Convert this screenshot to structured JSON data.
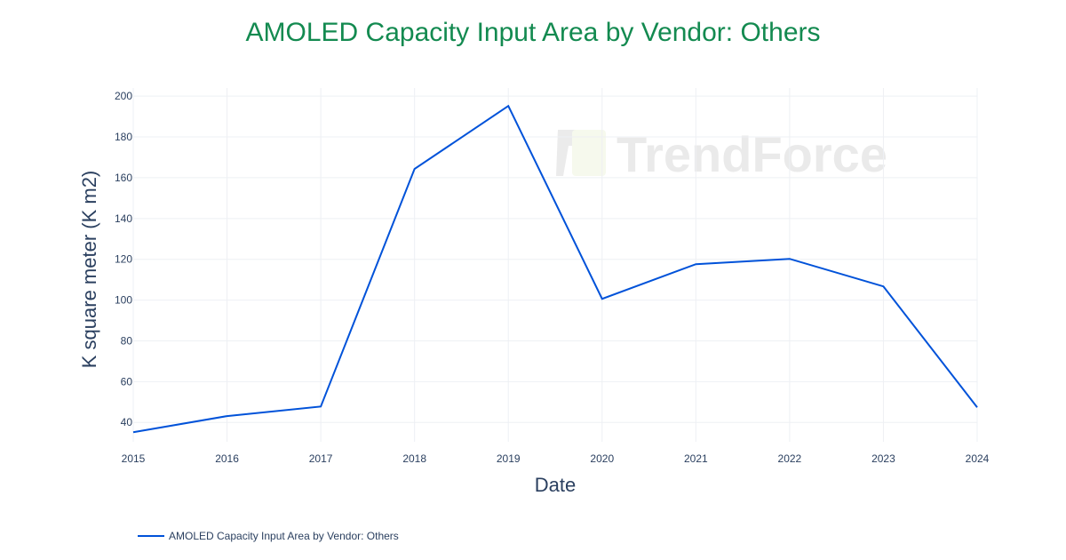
{
  "chart_data": {
    "type": "line",
    "title": "AMOLED Capacity Input Area by Vendor: Others",
    "xlabel": "Date",
    "ylabel": "K square meter (K m2)",
    "x": [
      "2015",
      "2016",
      "2017",
      "2018",
      "2019",
      "2020",
      "2021",
      "2022",
      "2023",
      "2024"
    ],
    "series": [
      {
        "name": "AMOLED Capacity Input Area by Vendor: Others",
        "values": [
          35.2,
          43.1,
          47.8,
          164.3,
          195.2,
          100.6,
          117.6,
          120.2,
          106.7,
          47.4
        ],
        "color": "#0052d9"
      }
    ],
    "yticks": [
      40,
      60,
      80,
      100,
      120,
      140,
      160,
      180,
      200
    ],
    "ylim": [
      30.5,
      204
    ],
    "grid": true,
    "legend": "bottom-left",
    "watermark": "TrendForce"
  }
}
